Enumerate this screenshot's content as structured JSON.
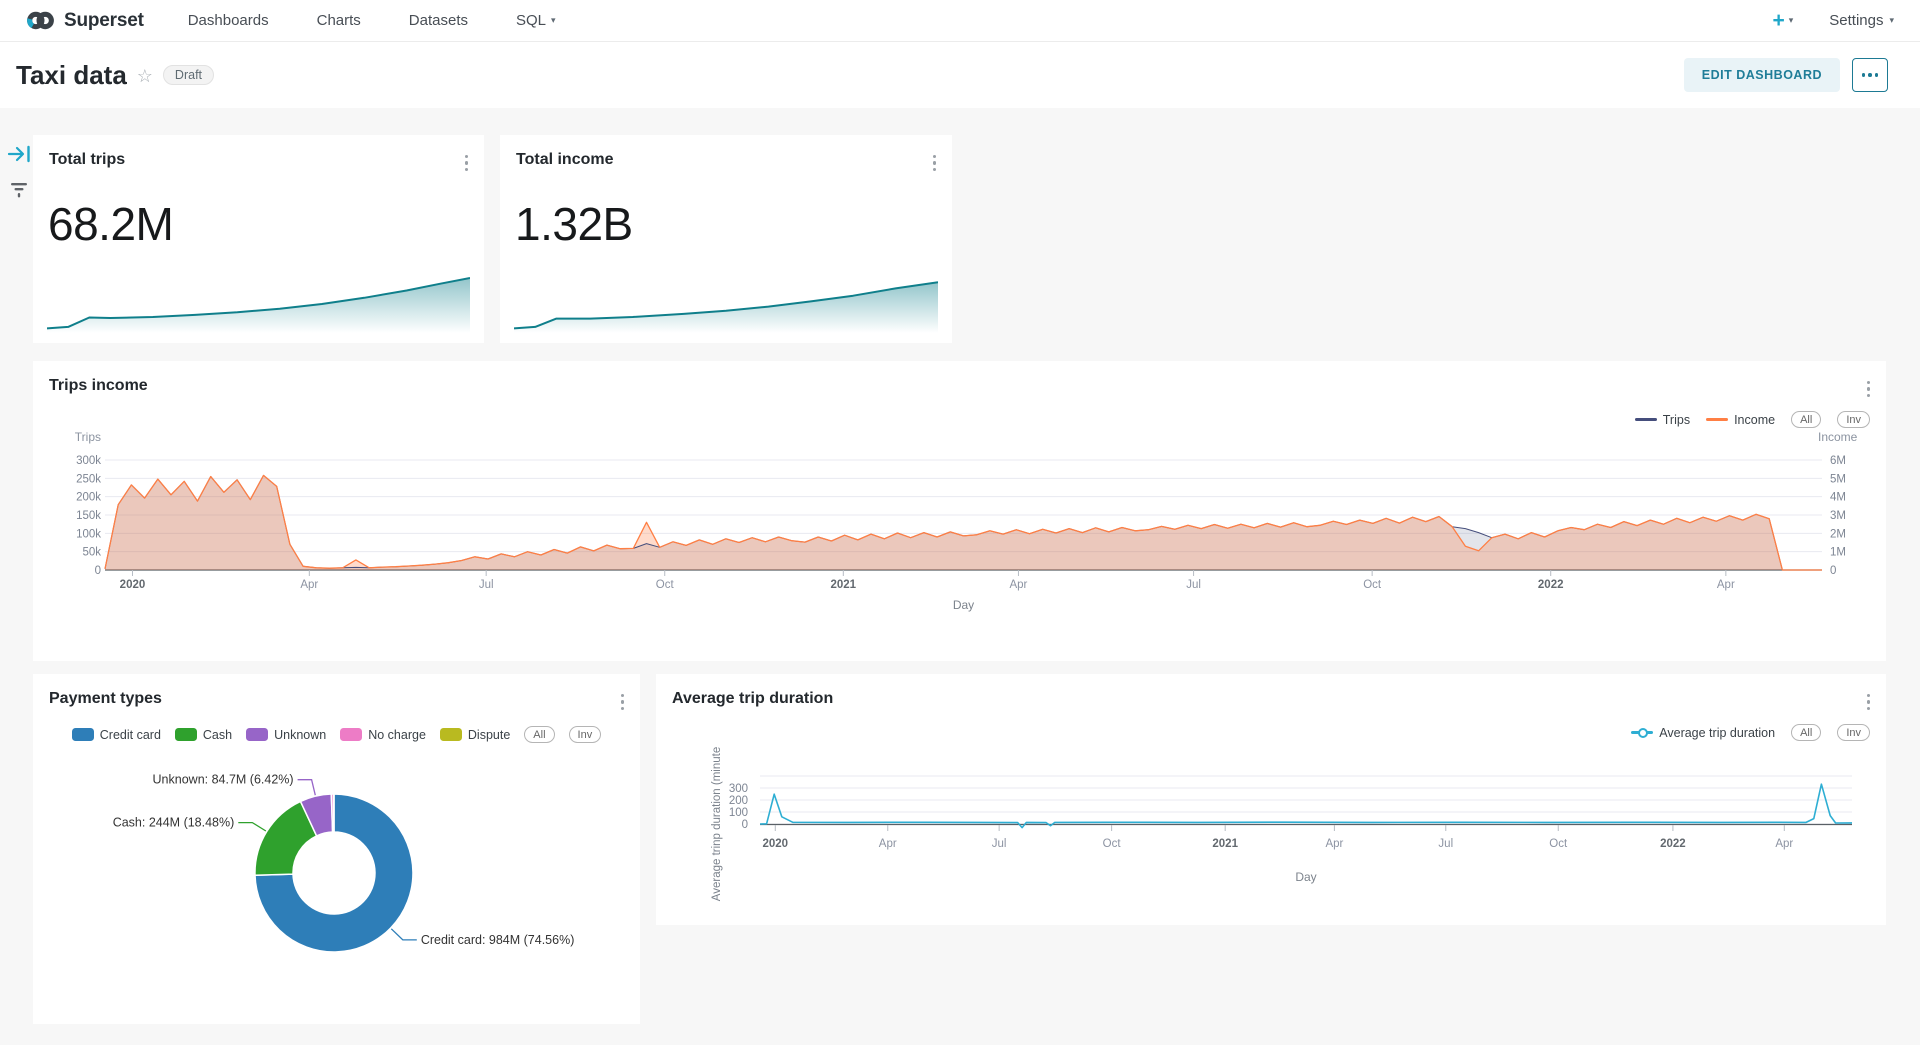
{
  "nav": {
    "brand": "Superset",
    "items": [
      "Dashboards",
      "Charts",
      "Datasets",
      "SQL"
    ],
    "new_button": "+",
    "settings": "Settings"
  },
  "icons": {
    "star": "☆",
    "caret": "▾",
    "plus": "+"
  },
  "header": {
    "title": "Taxi data",
    "status": "Draft",
    "edit_button": "EDIT DASHBOARD"
  },
  "colors": {
    "accent": "#20a7c9",
    "edit_button_bg": "#e9f3f7",
    "edit_button_text": "#1f7d98",
    "dashboard_bg": "#f7f7f7",
    "card_bg": "#ffffff",
    "grid_line": "#e8eaf1",
    "axis_line": "#596066",
    "tick_text": "#8c93a2"
  },
  "chart_data": {
    "total_trips": {
      "type": "area",
      "title": "Total trips",
      "headline": "68.2M",
      "color": "#0f7f8b",
      "points": [
        [
          0,
          0.03
        ],
        [
          0.05,
          0.06
        ],
        [
          0.1,
          0.24
        ],
        [
          0.15,
          0.23
        ],
        [
          0.25,
          0.25
        ],
        [
          0.35,
          0.29
        ],
        [
          0.45,
          0.34
        ],
        [
          0.55,
          0.41
        ],
        [
          0.65,
          0.5
        ],
        [
          0.75,
          0.62
        ],
        [
          0.85,
          0.76
        ],
        [
          0.93,
          0.89
        ],
        [
          1,
          1
        ]
      ]
    },
    "total_income": {
      "type": "area",
      "title": "Total income",
      "headline": "1.32B",
      "color": "#0f7f8b",
      "points": [
        [
          0,
          0.03
        ],
        [
          0.05,
          0.06
        ],
        [
          0.1,
          0.22
        ],
        [
          0.18,
          0.22
        ],
        [
          0.28,
          0.25
        ],
        [
          0.4,
          0.31
        ],
        [
          0.5,
          0.37
        ],
        [
          0.6,
          0.45
        ],
        [
          0.7,
          0.55
        ],
        [
          0.8,
          0.66
        ],
        [
          0.9,
          0.8
        ],
        [
          1,
          0.92
        ]
      ]
    },
    "trips_income": {
      "type": "line",
      "title": "Trips income",
      "xlabel": "Day",
      "legend_buttons": [
        "All",
        "Inv"
      ],
      "y_left": {
        "label": "Trips",
        "max": 300,
        "ticks": [
          "300k",
          "250k",
          "200k",
          "150k",
          "100k",
          "50k",
          "0"
        ]
      },
      "y_right": {
        "label": "Income",
        "max": 6,
        "ticks": [
          "6M",
          "5M",
          "4M",
          "3M",
          "2M",
          "1M",
          "0"
        ]
      },
      "x_ticks": [
        {
          "label": "2020",
          "f": 0.016,
          "year": true
        },
        {
          "label": "Apr",
          "f": 0.119
        },
        {
          "label": "Jul",
          "f": 0.222
        },
        {
          "label": "Oct",
          "f": 0.326
        },
        {
          "label": "2021",
          "f": 0.43,
          "year": true
        },
        {
          "label": "Apr",
          "f": 0.532
        },
        {
          "label": "Jul",
          "f": 0.634
        },
        {
          "label": "Oct",
          "f": 0.738
        },
        {
          "label": "2022",
          "f": 0.842,
          "year": true
        },
        {
          "label": "Apr",
          "f": 0.944
        }
      ],
      "series": [
        {
          "name": "Trips",
          "color": "#454e7c",
          "axis": "left",
          "fill": "rgba(69,78,124,0.15)",
          "unit": "k",
          "values": [
            3,
            178,
            232,
            196,
            248,
            205,
            242,
            188,
            255,
            212,
            246,
            192,
            258,
            228,
            70,
            10,
            6,
            5,
            6,
            7,
            6,
            8,
            9,
            11,
            13,
            16,
            20,
            26,
            36,
            30,
            44,
            36,
            50,
            41,
            56,
            46,
            63,
            52,
            68,
            58,
            59,
            72,
            62,
            77,
            67,
            82,
            70,
            85,
            75,
            88,
            77,
            90,
            80,
            76,
            90,
            79,
            95,
            82,
            98,
            85,
            101,
            88,
            102,
            90,
            104,
            93,
            96,
            107,
            98,
            110,
            99,
            111,
            101,
            113,
            102,
            115,
            104,
            116,
            107,
            110,
            119,
            111,
            122,
            113,
            124,
            114,
            125,
            115,
            127,
            117,
            129,
            118,
            122,
            133,
            124,
            136,
            127,
            141,
            128,
            144,
            132,
            146,
            118,
            113,
            102,
            88,
            98,
            85,
            102,
            90,
            107,
            116,
            110,
            125,
            116,
            132,
            121,
            136,
            125,
            141,
            129,
            144,
            133,
            148,
            136,
            152,
            140,
            0,
            0,
            0,
            0
          ]
        },
        {
          "name": "Income",
          "color": "#ff7f44",
          "axis": "right",
          "fill": "rgba(255,127,68,0.28)",
          "unit": "M",
          "values": [
            0.06,
            3.56,
            4.64,
            3.92,
            4.96,
            4.1,
            4.84,
            3.76,
            5.1,
            4.24,
            4.92,
            3.84,
            5.16,
            4.56,
            1.4,
            0.2,
            0.12,
            0.1,
            0.12,
            0.55,
            0.12,
            0.16,
            0.18,
            0.22,
            0.26,
            0.32,
            0.4,
            0.52,
            0.72,
            0.6,
            0.88,
            0.72,
            1.0,
            0.82,
            1.12,
            0.92,
            1.26,
            1.04,
            1.36,
            1.16,
            1.18,
            2.6,
            1.24,
            1.54,
            1.34,
            1.64,
            1.4,
            1.7,
            1.5,
            1.76,
            1.54,
            1.8,
            1.6,
            1.52,
            1.8,
            1.58,
            1.9,
            1.64,
            1.96,
            1.7,
            2.02,
            1.76,
            2.04,
            1.8,
            2.08,
            1.86,
            1.92,
            2.14,
            1.96,
            2.2,
            1.98,
            2.22,
            2.02,
            2.26,
            2.04,
            2.3,
            2.08,
            2.32,
            2.14,
            2.2,
            2.38,
            2.22,
            2.44,
            2.26,
            2.48,
            2.28,
            2.5,
            2.3,
            2.54,
            2.34,
            2.58,
            2.36,
            2.44,
            2.66,
            2.48,
            2.72,
            2.54,
            2.82,
            2.56,
            2.88,
            2.64,
            2.92,
            2.36,
            1.3,
            1.05,
            1.76,
            1.96,
            1.7,
            2.04,
            1.8,
            2.14,
            2.32,
            2.2,
            2.5,
            2.32,
            2.64,
            2.42,
            2.72,
            2.5,
            2.82,
            2.58,
            2.88,
            2.66,
            2.96,
            2.72,
            3.04,
            2.8,
            0,
            0,
            0,
            0
          ]
        }
      ]
    },
    "payment_types": {
      "type": "pie",
      "title": "Payment types",
      "legend_buttons": [
        "All",
        "Inv"
      ],
      "slices": [
        {
          "label": "Credit card",
          "value": "984M",
          "pct": 74.56,
          "color": "#2e7eb8",
          "callout": "Credit card: 984M (74.56%)"
        },
        {
          "label": "Cash",
          "value": "244M",
          "pct": 18.48,
          "color": "#2fa12d",
          "callout": "Cash: 244M (18.48%)"
        },
        {
          "label": "Unknown",
          "value": "84.7M",
          "pct": 6.42,
          "color": "#9765c8",
          "callout": "Unknown: 84.7M (6.42%)"
        },
        {
          "label": "No charge",
          "pct": 0.45,
          "color": "#ed7cc6"
        },
        {
          "label": "Dispute",
          "pct": 0.09,
          "color": "#b9ba20"
        }
      ]
    },
    "avg_trip_duration": {
      "type": "line",
      "title": "Average trip duration",
      "legend": "Average trip duration",
      "legend_buttons": [
        "All",
        "Inv"
      ],
      "xlabel": "Day",
      "ylabel": "Average trinp duration (minute",
      "color": "#2eaed3",
      "y_ticks": [
        {
          "label": "300",
          "v": 300
        },
        {
          "label": "200",
          "v": 200
        },
        {
          "label": "100",
          "v": 100
        },
        {
          "label": "0",
          "v": 0
        }
      ],
      "x_ticks": [
        {
          "label": "2020",
          "f": 0.014,
          "year": true
        },
        {
          "label": "Apr",
          "f": 0.117
        },
        {
          "label": "Jul",
          "f": 0.219
        },
        {
          "label": "Oct",
          "f": 0.322
        },
        {
          "label": "2021",
          "f": 0.426,
          "year": true
        },
        {
          "label": "Apr",
          "f": 0.526
        },
        {
          "label": "Jul",
          "f": 0.628
        },
        {
          "label": "Oct",
          "f": 0.731
        },
        {
          "label": "2022",
          "f": 0.836,
          "year": true
        },
        {
          "label": "Apr",
          "f": 0.938
        }
      ],
      "points": [
        [
          0,
          0
        ],
        [
          0.006,
          2
        ],
        [
          0.013,
          248
        ],
        [
          0.02,
          60
        ],
        [
          0.03,
          14
        ],
        [
          0.08,
          13
        ],
        [
          0.15,
          14
        ],
        [
          0.2,
          13
        ],
        [
          0.236,
          12
        ],
        [
          0.24,
          -30
        ],
        [
          0.244,
          13
        ],
        [
          0.262,
          12
        ],
        [
          0.266,
          -14
        ],
        [
          0.27,
          13
        ],
        [
          0.32,
          14
        ],
        [
          0.4,
          13
        ],
        [
          0.48,
          15
        ],
        [
          0.56,
          13
        ],
        [
          0.64,
          14
        ],
        [
          0.72,
          13
        ],
        [
          0.8,
          14
        ],
        [
          0.88,
          13
        ],
        [
          0.93,
          14
        ],
        [
          0.958,
          13
        ],
        [
          0.965,
          45
        ],
        [
          0.972,
          332
        ],
        [
          0.98,
          70
        ],
        [
          0.985,
          8
        ],
        [
          1,
          9
        ]
      ]
    }
  }
}
